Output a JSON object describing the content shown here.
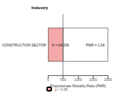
{
  "chart_data": {
    "type": "bar",
    "orientation": "horizontal",
    "stacked": true,
    "ylabel": "Industry",
    "xlabel": "Proportionate Mortality Ratio (PMR)",
    "categories": [
      "CONSTRUCTION SECTOR"
    ],
    "series": [
      {
        "name": "p < 0.05",
        "color": "#f4a9a8",
        "values": [
          500
        ]
      },
      {
        "color": "#ffffff",
        "values": [
          1500
        ]
      }
    ],
    "annotations": [
      "N = 64/336",
      "PMR = 1.08"
    ],
    "reference_line": {
      "value": 500,
      "color": "#666666"
    },
    "xlim": [
      0,
      2000
    ],
    "xticks": [
      0,
      500,
      1000,
      1500,
      2000
    ],
    "grid": false,
    "legend": "bottom"
  }
}
